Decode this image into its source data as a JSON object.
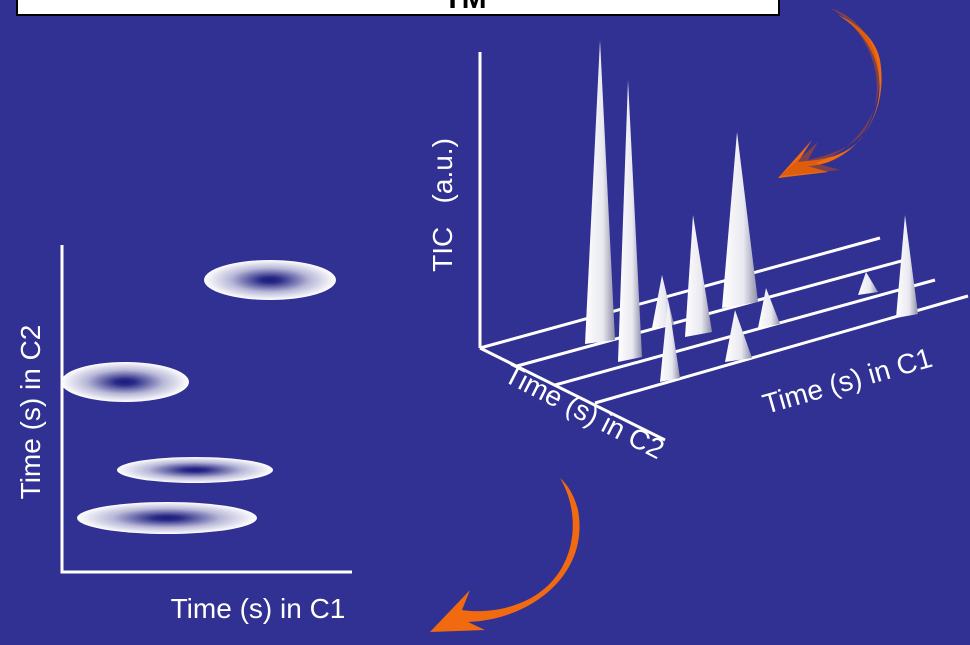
{
  "title": "TM",
  "left_plot": {
    "y_label": "Time (s) in C2",
    "x_label": "Time (s) in C1"
  },
  "right_plot": {
    "z_label": "TIC   (a.u.)",
    "depth_label": "Time (s) in C2",
    "x_label": "Time (s) in C1"
  }
}
